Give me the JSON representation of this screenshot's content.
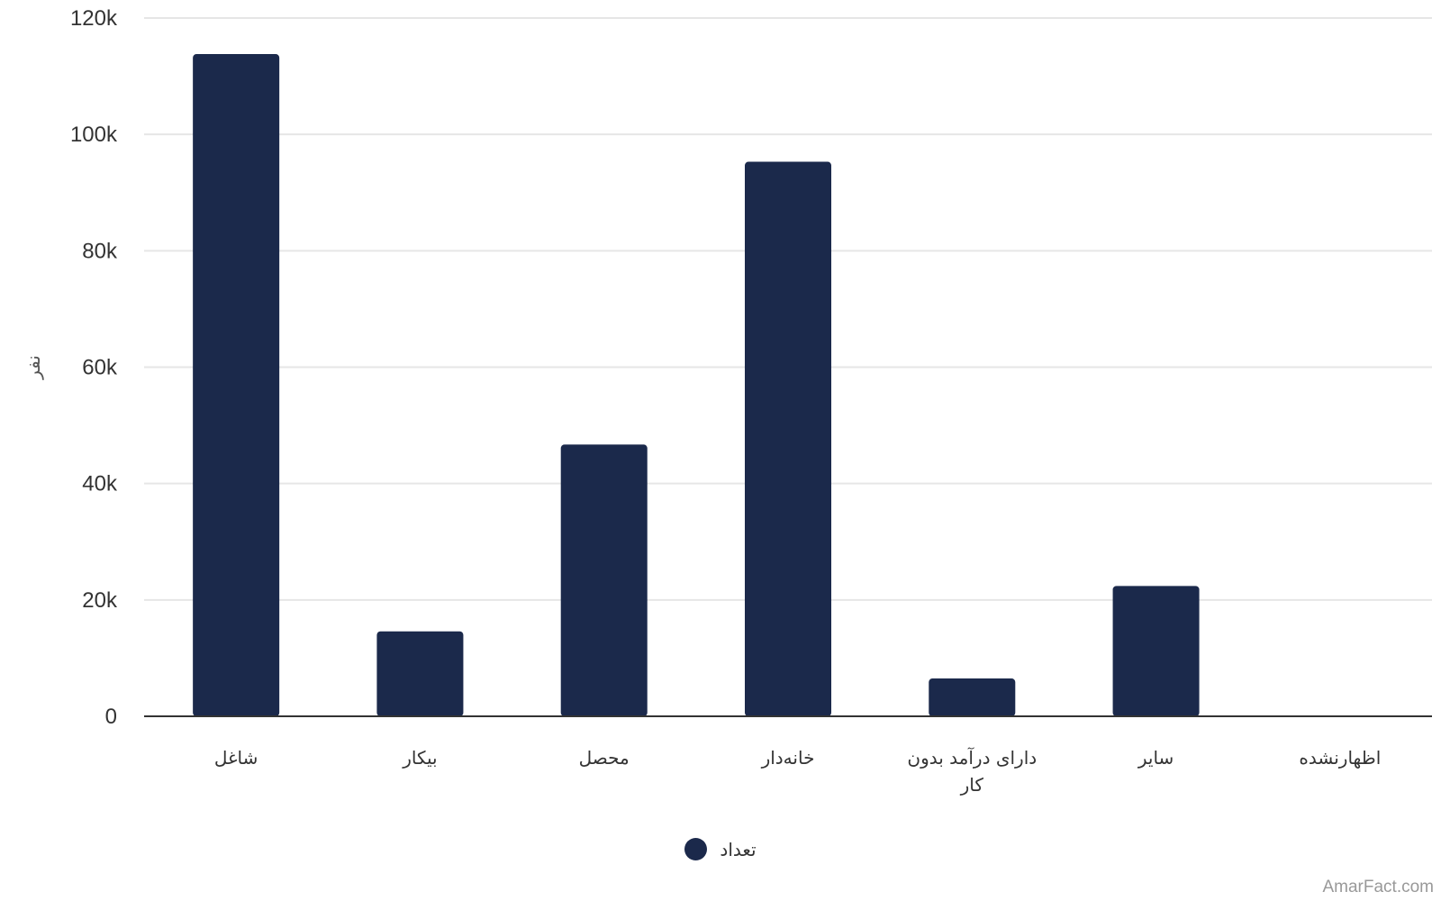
{
  "chart_data": {
    "type": "bar",
    "categories": [
      "شاغل",
      "بیکار",
      "محصل",
      "خانه‌دار",
      "دارای درآمد بدون کار",
      "سایر",
      "اظهارنشده"
    ],
    "series": [
      {
        "name": "تعداد",
        "values": [
          113800,
          14600,
          46700,
          95300,
          6500,
          22400,
          0
        ]
      }
    ],
    "ylabel": "نفر",
    "xlabel": "",
    "ylim": [
      0,
      120000
    ],
    "yticks": [
      0,
      20000,
      40000,
      60000,
      80000,
      100000,
      120000
    ],
    "ytick_labels": [
      "0",
      "20k",
      "40k",
      "60k",
      "80k",
      "100k",
      "120k"
    ],
    "grid": true,
    "legend": "bottom-center",
    "colors": {
      "bar": "#1b294b",
      "grid": "#e6e6e6",
      "axis": "#333333"
    }
  },
  "watermark": "AmarFact.com"
}
